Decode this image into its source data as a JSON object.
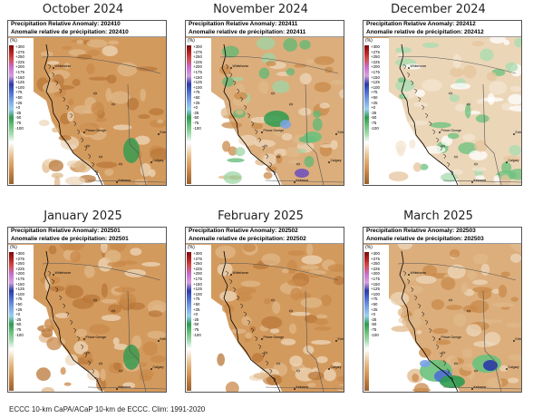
{
  "panels": [
    {
      "title": "October 2024",
      "header_en": "Precipitation Relative Anomaly: 202410",
      "header_fr": "Anomalie relative de précipitation: 202410",
      "dominant": "dry"
    },
    {
      "title": "November 2024",
      "header_en": "Precipitation Relative Anomaly: 202411",
      "header_fr": "Anomalie relative de précipitation: 202411",
      "dominant": "mixed"
    },
    {
      "title": "December 2024",
      "header_en": "Precipitation Relative Anomaly: 202412",
      "header_fr": "Anomalie relative de précipitation: 202412",
      "dominant": "near-normal"
    },
    {
      "title": "January 2025",
      "header_en": "Precipitation Relative Anomaly: 202501",
      "header_fr": "Anomalie relative de précipitation: 202501",
      "dominant": "dry"
    },
    {
      "title": "February 2025",
      "header_en": "Precipitation Relative Anomaly: 202502",
      "header_fr": "Anomalie relative de précipitation: 202502",
      "dominant": "dry"
    },
    {
      "title": "March 2025",
      "header_en": "Precipitation Relative Anomaly: 202503",
      "header_fr": "Anomalie relative de précipitation: 202503",
      "dominant": "wet-south"
    }
  ],
  "legend": {
    "unit": "(%)",
    "ticks": [
      "+300",
      "+275",
      "+250",
      "+225",
      "+200",
      "+175",
      "+150",
      "+125",
      "+100",
      "+75",
      "+50",
      "+25",
      "+0",
      "-25",
      "-50",
      "-75",
      "-100"
    ],
    "colors": [
      "#7a0d0d",
      "#b51f1f",
      "#d34c4c",
      "#c76fd0",
      "#d79fde",
      "#2b3aa8",
      "#4e6fd2",
      "#7aa3e6",
      "#9ad0f0",
      "#2e9b4f",
      "#69c27d",
      "#a7dcb0",
      "#ffffff",
      "#f0d8b7",
      "#e3b27b",
      "#d59555",
      "#9a6230"
    ]
  },
  "cities": [
    "Whitehorse",
    "Prince George",
    "Edmonton",
    "Kelowna",
    "Calgary"
  ],
  "footer": "ECCC 10-km CaPA/ACaP 10-km de ECCC. Clim: 1991-2020"
}
